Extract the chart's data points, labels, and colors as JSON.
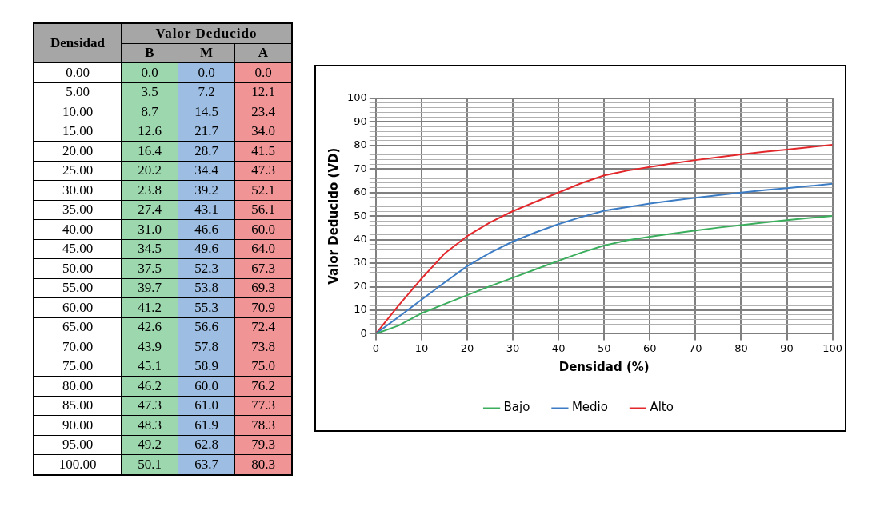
{
  "chart_data": {
    "type": "line",
    "xlabel": "Densidad (%)",
    "ylabel": "Valor Deducido (VD)",
    "annotations": [
      "Densidad",
      "Valor Deducido",
      "B",
      "M",
      "A",
      "0.00",
      "0.0",
      "0.0",
      "0.0",
      "5.00",
      "3.5",
      "7.2",
      "12.1",
      "10.00",
      "8.7",
      "14.5",
      "23.4",
      "15.00",
      "12.6",
      "21.7",
      "34.0",
      "20.00",
      "16.4",
      "28.7",
      "41.5",
      "25.00",
      "20.2",
      "34.4",
      "47.3",
      "30.00",
      "23.8",
      "39.2",
      "52.1",
      "35.00",
      "27.4",
      "43.1",
      "56.1",
      "40.00",
      "31.0",
      "46.6",
      "60.0",
      "45.00",
      "34.5",
      "49.6",
      "64.0",
      "50.00",
      "37.5",
      "52.3",
      "67.3",
      "55.00",
      "39.7",
      "53.8",
      "69.3",
      "60.00",
      "41.2",
      "55.3",
      "70.9",
      "65.00",
      "42.6",
      "56.6",
      "72.4",
      "70.00",
      "43.9",
      "57.8",
      "73.8",
      "75.00",
      "45.1",
      "58.9",
      "75.0",
      "80.00",
      "46.2",
      "60.0",
      "76.2",
      "85.00",
      "47.3",
      "61.0",
      "77.3",
      "90.00",
      "48.3",
      "61.9",
      "78.3",
      "95.00",
      "49.2",
      "62.8",
      "79.3",
      "100.00",
      "50.1",
      "63.7",
      "80.3"
    ],
    "x": [
      0,
      5,
      10,
      15,
      20,
      25,
      30,
      35,
      40,
      45,
      50,
      55,
      60,
      65,
      70,
      75,
      80,
      85,
      90,
      95,
      100
    ],
    "series": [
      {
        "name": "Bajo",
        "color": "#3aae5c",
        "values": [
          0.0,
          3.5,
          8.7,
          12.6,
          16.4,
          20.2,
          23.8,
          27.4,
          31.0,
          34.5,
          37.5,
          39.7,
          41.2,
          42.6,
          43.9,
          45.1,
          46.2,
          47.3,
          48.3,
          49.2,
          50.1
        ]
      },
      {
        "name": "Medio",
        "color": "#3b7cc4",
        "values": [
          0.0,
          7.2,
          14.5,
          21.7,
          28.7,
          34.4,
          39.2,
          43.1,
          46.6,
          49.6,
          52.3,
          53.8,
          55.3,
          56.6,
          57.8,
          58.9,
          60.0,
          61.0,
          61.9,
          62.8,
          63.7
        ]
      },
      {
        "name": "Alto",
        "color": "#e3282c",
        "values": [
          0.0,
          12.1,
          23.4,
          34.0,
          41.5,
          47.3,
          52.1,
          56.1,
          60.0,
          64.0,
          67.3,
          69.3,
          70.9,
          72.4,
          73.8,
          75.0,
          76.2,
          77.3,
          78.3,
          79.3,
          80.3
        ]
      }
    ],
    "xlim": [
      0,
      100
    ],
    "xticks": [
      0,
      10,
      20,
      30,
      40,
      50,
      60,
      70,
      80,
      90,
      100
    ],
    "ylim": [
      0,
      100
    ],
    "yticks": [
      0,
      {
        "value": 2,
        "label": null
      },
      {
        "value": 4,
        "label": null
      },
      {
        "value": 6,
        "label": null
      },
      {
        "value": 8,
        "label": null
      },
      10,
      {
        "value": 12,
        "label": null
      },
      {
        "value": 14,
        "label": null
      },
      {
        "value": 16,
        "label": null
      },
      {
        "value": 18,
        "label": null
      },
      20,
      {
        "value": 22,
        "label": null
      },
      {
        "value": 24,
        "label": null
      },
      {
        "value": 26,
        "label": null
      },
      {
        "value": 28,
        "label": null
      },
      30,
      {
        "value": 32,
        "label": null
      },
      {
        "value": 34,
        "label": null
      },
      {
        "value": 36,
        "label": null
      },
      {
        "value": 38,
        "label": null
      },
      40,
      {
        "value": 42,
        "label": null
      },
      {
        "value": 44,
        "label": null
      },
      {
        "value": 46,
        "label": null
      },
      {
        "value": 48,
        "label": null
      },
      50,
      {
        "value": 52,
        "label": null
      },
      {
        "value": 54,
        "label": null
      },
      {
        "value": 56,
        "label": null
      },
      {
        "value": 58,
        "label": null
      },
      60,
      {
        "value": 62,
        "label": null
      },
      {
        "value": 64,
        "label": null
      },
      {
        "value": 66,
        "label": null
      },
      {
        "value": 68,
        "label": null
      },
      70,
      {
        "value": 72,
        "label": null
      },
      {
        "value": 74,
        "label": null
      },
      {
        "value": 76,
        "label": null
      },
      {
        "value": 78,
        "label": null
      },
      80,
      {
        "value": 82,
        "label": null
      },
      {
        "value": 84,
        "label": null
      },
      {
        "value": 86,
        "label": null
      },
      {
        "value": 88,
        "label": null
      },
      90,
      {
        "value": 92,
        "label": null
      },
      {
        "value": 94,
        "label": null
      },
      {
        "value": 96,
        "label": null
      },
      {
        "value": 98,
        "label": null
      },
      100
    ],
    "grid": true,
    "legend": "bottom",
    "marker": "none",
    "line_style": "solid"
  }
}
